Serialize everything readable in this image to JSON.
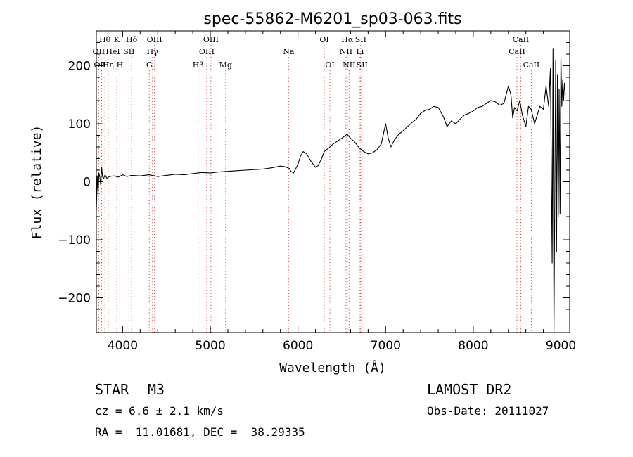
{
  "chart_data": {
    "type": "line",
    "title": "spec-55862-M6201_sp03-063.fits",
    "xlabel": "Wavelength (Å)",
    "ylabel": "Flux (relative)",
    "xlim": [
      3700,
      9100
    ],
    "ylim": [
      -260,
      260
    ],
    "x_ticks": [
      {
        "value": 4000,
        "label": "4000"
      },
      {
        "value": 5000,
        "label": "5000"
      },
      {
        "value": 6000,
        "label": "6000"
      },
      {
        "value": 7000,
        "label": "7000"
      },
      {
        "value": 8000,
        "label": "8000"
      },
      {
        "value": 9000,
        "label": "9000"
      }
    ],
    "y_ticks": [
      {
        "value": -200,
        "label": "−200"
      },
      {
        "value": -100,
        "label": "−100"
      },
      {
        "value": 0,
        "label": "0"
      },
      {
        "value": 100,
        "label": "100"
      },
      {
        "value": 200,
        "label": "200"
      }
    ],
    "series": [
      {
        "color": "#000000",
        "x": [
          3700,
          3710,
          3720,
          3730,
          3740,
          3750,
          3760,
          3770,
          3780,
          3800,
          3820,
          3850,
          3900,
          3950,
          4000,
          4050,
          4100,
          4200,
          4300,
          4400,
          4500,
          4600,
          4700,
          4800,
          4900,
          5000,
          5100,
          5200,
          5300,
          5400,
          5500,
          5600,
          5700,
          5800,
          5850,
          5900,
          5920,
          5950,
          6000,
          6030,
          6060,
          6100,
          6150,
          6200,
          6230,
          6270,
          6300,
          6350,
          6400,
          6450,
          6500,
          6560,
          6600,
          6650,
          6700,
          6750,
          6800,
          6850,
          6900,
          6950,
          7000,
          7030,
          7060,
          7100,
          7150,
          7200,
          7250,
          7300,
          7350,
          7400,
          7450,
          7500,
          7550,
          7600,
          7630,
          7660,
          7700,
          7750,
          7800,
          7850,
          7900,
          7950,
          8000,
          8050,
          8100,
          8150,
          8200,
          8250,
          8300,
          8350,
          8400,
          8430,
          8450,
          8470,
          8500,
          8530,
          8560,
          8600,
          8630,
          8660,
          8700,
          8730,
          8760,
          8800,
          8830,
          8860,
          8880,
          8900,
          8910,
          8920,
          8930,
          8940,
          8950,
          8960,
          8970,
          8980,
          8990,
          9000,
          9010,
          9020,
          9030,
          9040,
          9050
        ],
        "y": [
          -50,
          10,
          -20,
          15,
          8,
          -5,
          25,
          10,
          5,
          12,
          6,
          9,
          10,
          8,
          12,
          9,
          11,
          10,
          12,
          9,
          11,
          13,
          12,
          14,
          16,
          15,
          17,
          18,
          19,
          20,
          21,
          22,
          24,
          27,
          26,
          23,
          18,
          15,
          30,
          45,
          52,
          48,
          35,
          25,
          28,
          40,
          52,
          58,
          65,
          70,
          75,
          82,
          75,
          68,
          58,
          52,
          48,
          50,
          55,
          65,
          100,
          75,
          60,
          72,
          82,
          88,
          95,
          102,
          108,
          118,
          123,
          125,
          130,
          128,
          120,
          112,
          95,
          105,
          100,
          108,
          115,
          118,
          122,
          128,
          130,
          135,
          140,
          138,
          132,
          135,
          165,
          150,
          110,
          128,
          122,
          140,
          115,
          95,
          130,
          125,
          100,
          115,
          130,
          125,
          165,
          130,
          195,
          -140,
          230,
          -260,
          -30,
          210,
          -120,
          185,
          -60,
          160,
          -55,
          215,
          130,
          175,
          140,
          170,
          150
        ]
      }
    ],
    "emission_lines": [
      {
        "label": "Hθ",
        "x": 3798,
        "row": 0
      },
      {
        "label": "K",
        "x": 3934,
        "row": 0
      },
      {
        "label": "Hδ",
        "x": 4102,
        "row": 0
      },
      {
        "label": "OIII",
        "x": 4363,
        "row": 0
      },
      {
        "label": "OIII",
        "x": 5007,
        "row": 0
      },
      {
        "label": "OI",
        "x": 6300,
        "row": 0
      },
      {
        "label": "Hα",
        "x": 6563,
        "row": 0
      },
      {
        "label": "SII",
        "x": 6716,
        "row": 0
      },
      {
        "label": "CaII",
        "x": 8542,
        "row": 0
      },
      {
        "label": "OII",
        "x": 3727,
        "row": 1
      },
      {
        "label": "HeI",
        "x": 3889,
        "row": 1
      },
      {
        "label": "SII",
        "x": 4072,
        "row": 1
      },
      {
        "label": "Hγ",
        "x": 4340,
        "row": 1
      },
      {
        "label": "OIII",
        "x": 4959,
        "row": 1
      },
      {
        "label": "Na",
        "x": 5893,
        "row": 1
      },
      {
        "label": "NII",
        "x": 6548,
        "row": 1
      },
      {
        "label": "Li",
        "x": 6708,
        "row": 1
      },
      {
        "label": "CaII",
        "x": 8498,
        "row": 1
      },
      {
        "label": "OIII",
        "x": 3760,
        "row": 2
      },
      {
        "label": "Hη",
        "x": 3835,
        "row": 2
      },
      {
        "label": "H",
        "x": 3968,
        "row": 2
      },
      {
        "label": "G",
        "x": 4304,
        "row": 2
      },
      {
        "label": "Hβ",
        "x": 4861,
        "row": 2
      },
      {
        "label": "Mg",
        "x": 5175,
        "row": 2
      },
      {
        "label": "OI",
        "x": 6364,
        "row": 2
      },
      {
        "label": "NII",
        "x": 6583,
        "row": 2
      },
      {
        "label": "SII",
        "x": 6731,
        "row": 2
      },
      {
        "label": "CaII",
        "x": 8662,
        "row": 2
      }
    ]
  },
  "info": {
    "object_class": "STAR",
    "subclass": "M3",
    "survey": "LAMOST DR2",
    "cz": "cz = 6.6 ± 2.1 km/s",
    "obs_date": "Obs-Date: 20111027",
    "coords": "RA =  11.01681, DEC =  38.29335"
  }
}
